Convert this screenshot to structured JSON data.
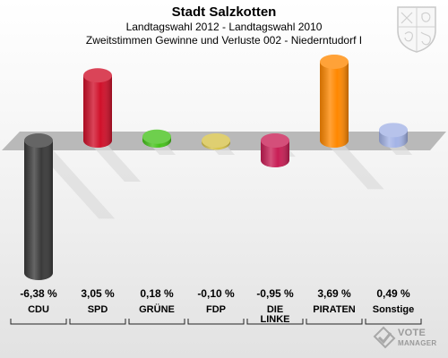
{
  "header": {
    "title": "Stadt Salzkotten",
    "subtitle": "Landtagswahl 2012 - Landtagswahl 2010",
    "description": "Zweitstimmen Gewinne und Verluste 002 - Niederntudorf I"
  },
  "watermark": {
    "line1": "VOTE",
    "line2": "MANAGER",
    "icon": "ballot-check-icon"
  },
  "crest": {
    "icon": "coat-of-arms-icon"
  },
  "chart_data": {
    "type": "bar",
    "unit": "%",
    "categories": [
      "CDU",
      "SPD",
      "GRÜNE",
      "FDP",
      "DIE LINKE",
      "PIRATEN",
      "Sonstige"
    ],
    "category_lines": [
      [
        "CDU"
      ],
      [
        "SPD"
      ],
      [
        "GRÜNE"
      ],
      [
        "FDP"
      ],
      [
        "DIE",
        "LINKE"
      ],
      [
        "PIRATEN"
      ],
      [
        "Sonstige"
      ]
    ],
    "values": [
      -6.38,
      3.05,
      0.18,
      -0.1,
      -0.95,
      3.69,
      0.49
    ],
    "value_labels": [
      "-6,38 %",
      "3,05 %",
      "0,18 %",
      "-0,10 %",
      "-0,95 %",
      "3,69 %",
      "0,49 %"
    ],
    "colors": [
      "#3a3a3a",
      "#d0102a",
      "#46c21b",
      "#d6c24a",
      "#c81e55",
      "#ff8800",
      "#a3b3e6"
    ],
    "ylim": [
      -6.38,
      3.69
    ],
    "grid": false,
    "legend": "none"
  }
}
